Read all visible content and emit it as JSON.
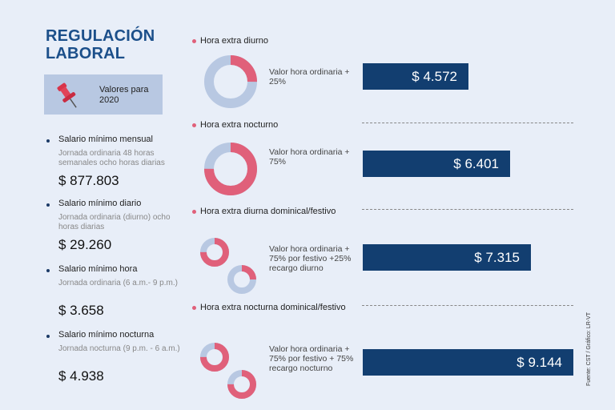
{
  "title": "REGULACIÓN LABORAL",
  "badge": {
    "text": "Valores para 2020"
  },
  "left_items": [
    {
      "title": "Salario mínimo mensual",
      "subtitle": "Jornada ordinaria 48 horas semanales ocho horas diarias",
      "value": "$ 877.803"
    },
    {
      "title": "Salario mínimo diario",
      "subtitle": "Jornada ordinaria (diurno) ocho horas diarias",
      "value": "$ 29.260"
    },
    {
      "title": "Salario mínimo hora",
      "subtitle": "Jornada ordinaria (6 a.m.- 9 p.m.)",
      "value": "$ 3.658"
    },
    {
      "title": "Salario mínimo nocturna",
      "subtitle": "Jornada nocturna (9 p.m. - 6 a.m.)",
      "value": "$ 4.938"
    }
  ],
  "source": "Fuente: CST / Gráfico: LR-VT",
  "colors": {
    "bar": "#123e70",
    "accent": "#e0607a",
    "donut_base": "#b8c8e2",
    "title": "#1b4f8a"
  },
  "chart_data": {
    "type": "bar",
    "categories": [
      "Hora extra diurno",
      "Hora extra nocturno",
      "Hora extra diurna dominical/festivo",
      "Hora extra nocturna dominical/festivo"
    ],
    "descriptions": [
      "Valor hora ordinaria + 25%",
      "Valor hora ordinaria + 75%",
      "Valor hora ordinaria + 75% por festivo +25% recargo diurno",
      "Valor hora ordinaria + 75% por festivo + 75% recargo nocturno"
    ],
    "values": [
      4572,
      6401,
      7315,
      9144
    ],
    "value_labels": [
      "$ 4.572",
      "$ 6.401",
      "$ 7.315",
      "$ 9.144"
    ],
    "donut_percentages": [
      [
        25
      ],
      [
        75
      ],
      [
        75,
        25
      ],
      [
        75,
        75
      ]
    ],
    "xlim": [
      0,
      9144
    ]
  }
}
